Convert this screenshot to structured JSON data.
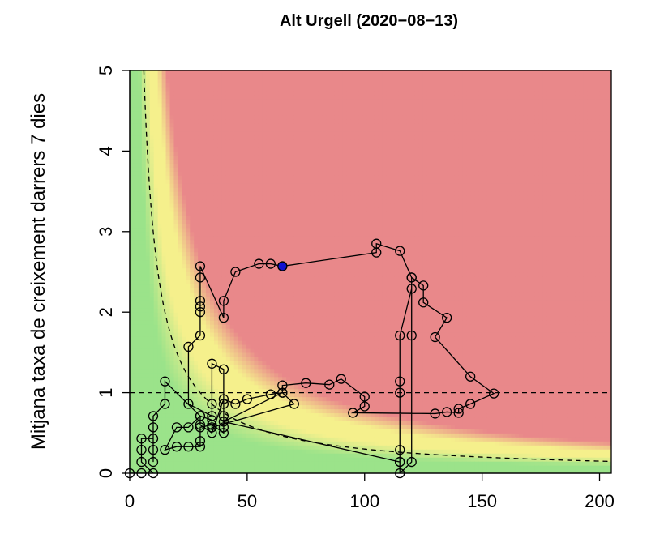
{
  "chart_data": {
    "type": "scatter",
    "title": "Alt Urgell (2020−08−13)",
    "xlabel": "",
    "ylabel": "Mitjana taxa de creixement darrers 7 dies",
    "xlim": [
      0,
      205
    ],
    "ylim": [
      0,
      5
    ],
    "x_ticks": [
      "0",
      "50",
      "100",
      "150",
      "200"
    ],
    "y_ticks": [
      "0",
      "1",
      "2",
      "3",
      "4",
      "5"
    ],
    "x_tick_values": [
      0,
      50,
      100,
      150,
      200
    ],
    "y_tick_values": [
      0,
      1,
      2,
      3,
      4,
      5
    ],
    "background": "risk heatmap: green (low) → yellow → red (high) as x·y grows",
    "colors": {
      "red": "#e9888a",
      "yellow": "#f5f08c",
      "green": "#9be38a",
      "current_point": "#1010d0",
      "line": "#000000"
    },
    "reference_lines": {
      "horizontal_y": 1,
      "curve": "y = 30 / x"
    },
    "series": [
      {
        "marker": "open-circle",
        "points": [
          [
            0,
            0
          ],
          [
            5,
            0
          ],
          [
            10,
            0
          ],
          [
            5,
            0.14
          ],
          [
            5,
            0.29
          ],
          [
            5,
            0.43
          ],
          [
            10,
            0.43
          ],
          [
            10,
            0.29
          ],
          [
            10,
            0.14
          ],
          [
            10,
            0.57
          ],
          [
            10,
            0.71
          ],
          [
            15,
            0.86
          ],
          [
            15,
            1.14
          ],
          [
            30,
            0.71
          ],
          [
            25,
            0.57
          ],
          [
            20,
            0.57
          ],
          [
            15,
            0.29
          ],
          [
            20,
            0.33
          ],
          [
            25,
            0.33
          ],
          [
            30,
            0.33
          ],
          [
            30,
            0.4
          ],
          [
            30,
            0.57
          ],
          [
            35,
            0.6
          ],
          [
            40,
            0.5
          ],
          [
            40,
            0.57
          ],
          [
            40,
            0.71
          ],
          [
            40,
            0.86
          ],
          [
            40,
            1.29
          ],
          [
            35,
            1.36
          ],
          [
            35,
            0.86
          ],
          [
            35,
            0.71
          ],
          [
            25,
            0.86
          ],
          [
            25,
            1.57
          ],
          [
            30,
            1.71
          ],
          [
            30,
            2.0
          ],
          [
            30,
            2.07
          ],
          [
            30,
            2.14
          ],
          [
            30,
            2.43
          ],
          [
            30,
            2.57
          ],
          [
            40,
            1.93
          ],
          [
            40,
            2.14
          ],
          [
            45,
            2.5
          ],
          [
            55,
            2.6
          ],
          [
            60,
            2.6
          ],
          [
            65,
            2.57
          ],
          [
            105,
            2.74
          ],
          [
            105,
            2.85
          ],
          [
            115,
            2.76
          ],
          [
            120,
            2.43
          ],
          [
            120,
            2.29
          ],
          [
            115,
            1.71
          ],
          [
            115,
            1.14
          ],
          [
            115,
            1.0
          ],
          [
            115,
            0.29
          ],
          [
            115,
            0.14
          ],
          [
            115,
            0.0
          ],
          [
            120,
            0.14
          ],
          [
            120,
            1.71
          ],
          [
            120,
            2.43
          ],
          [
            125,
            2.33
          ],
          [
            125,
            2.12
          ],
          [
            135,
            1.93
          ],
          [
            130,
            1.69
          ],
          [
            145,
            1.2
          ],
          [
            155,
            0.99
          ],
          [
            145,
            0.86
          ],
          [
            140,
            0.8
          ],
          [
            140,
            0.75
          ],
          [
            135,
            0.76
          ],
          [
            130,
            0.74
          ],
          [
            95,
            0.75
          ],
          [
            100,
            0.83
          ],
          [
            100,
            0.95
          ],
          [
            90,
            1.17
          ],
          [
            85,
            1.1
          ],
          [
            75,
            1.12
          ],
          [
            65,
            1.09
          ],
          [
            65,
            1.0
          ],
          [
            60,
            0.98
          ],
          [
            50,
            0.92
          ],
          [
            45,
            0.86
          ],
          [
            40,
            0.92
          ],
          [
            35,
            0.5
          ],
          [
            30,
            0.6
          ],
          [
            30,
            0.71
          ],
          [
            35,
            0.66
          ],
          [
            35,
            0.57
          ],
          [
            70,
            0.86
          ],
          [
            65,
            1.0
          ],
          [
            40,
            0.64
          ],
          [
            115,
            0.14
          ]
        ]
      }
    ],
    "highlight_point": {
      "x": 65,
      "y": 2.57,
      "label": "current",
      "color": "#1010d0"
    }
  }
}
